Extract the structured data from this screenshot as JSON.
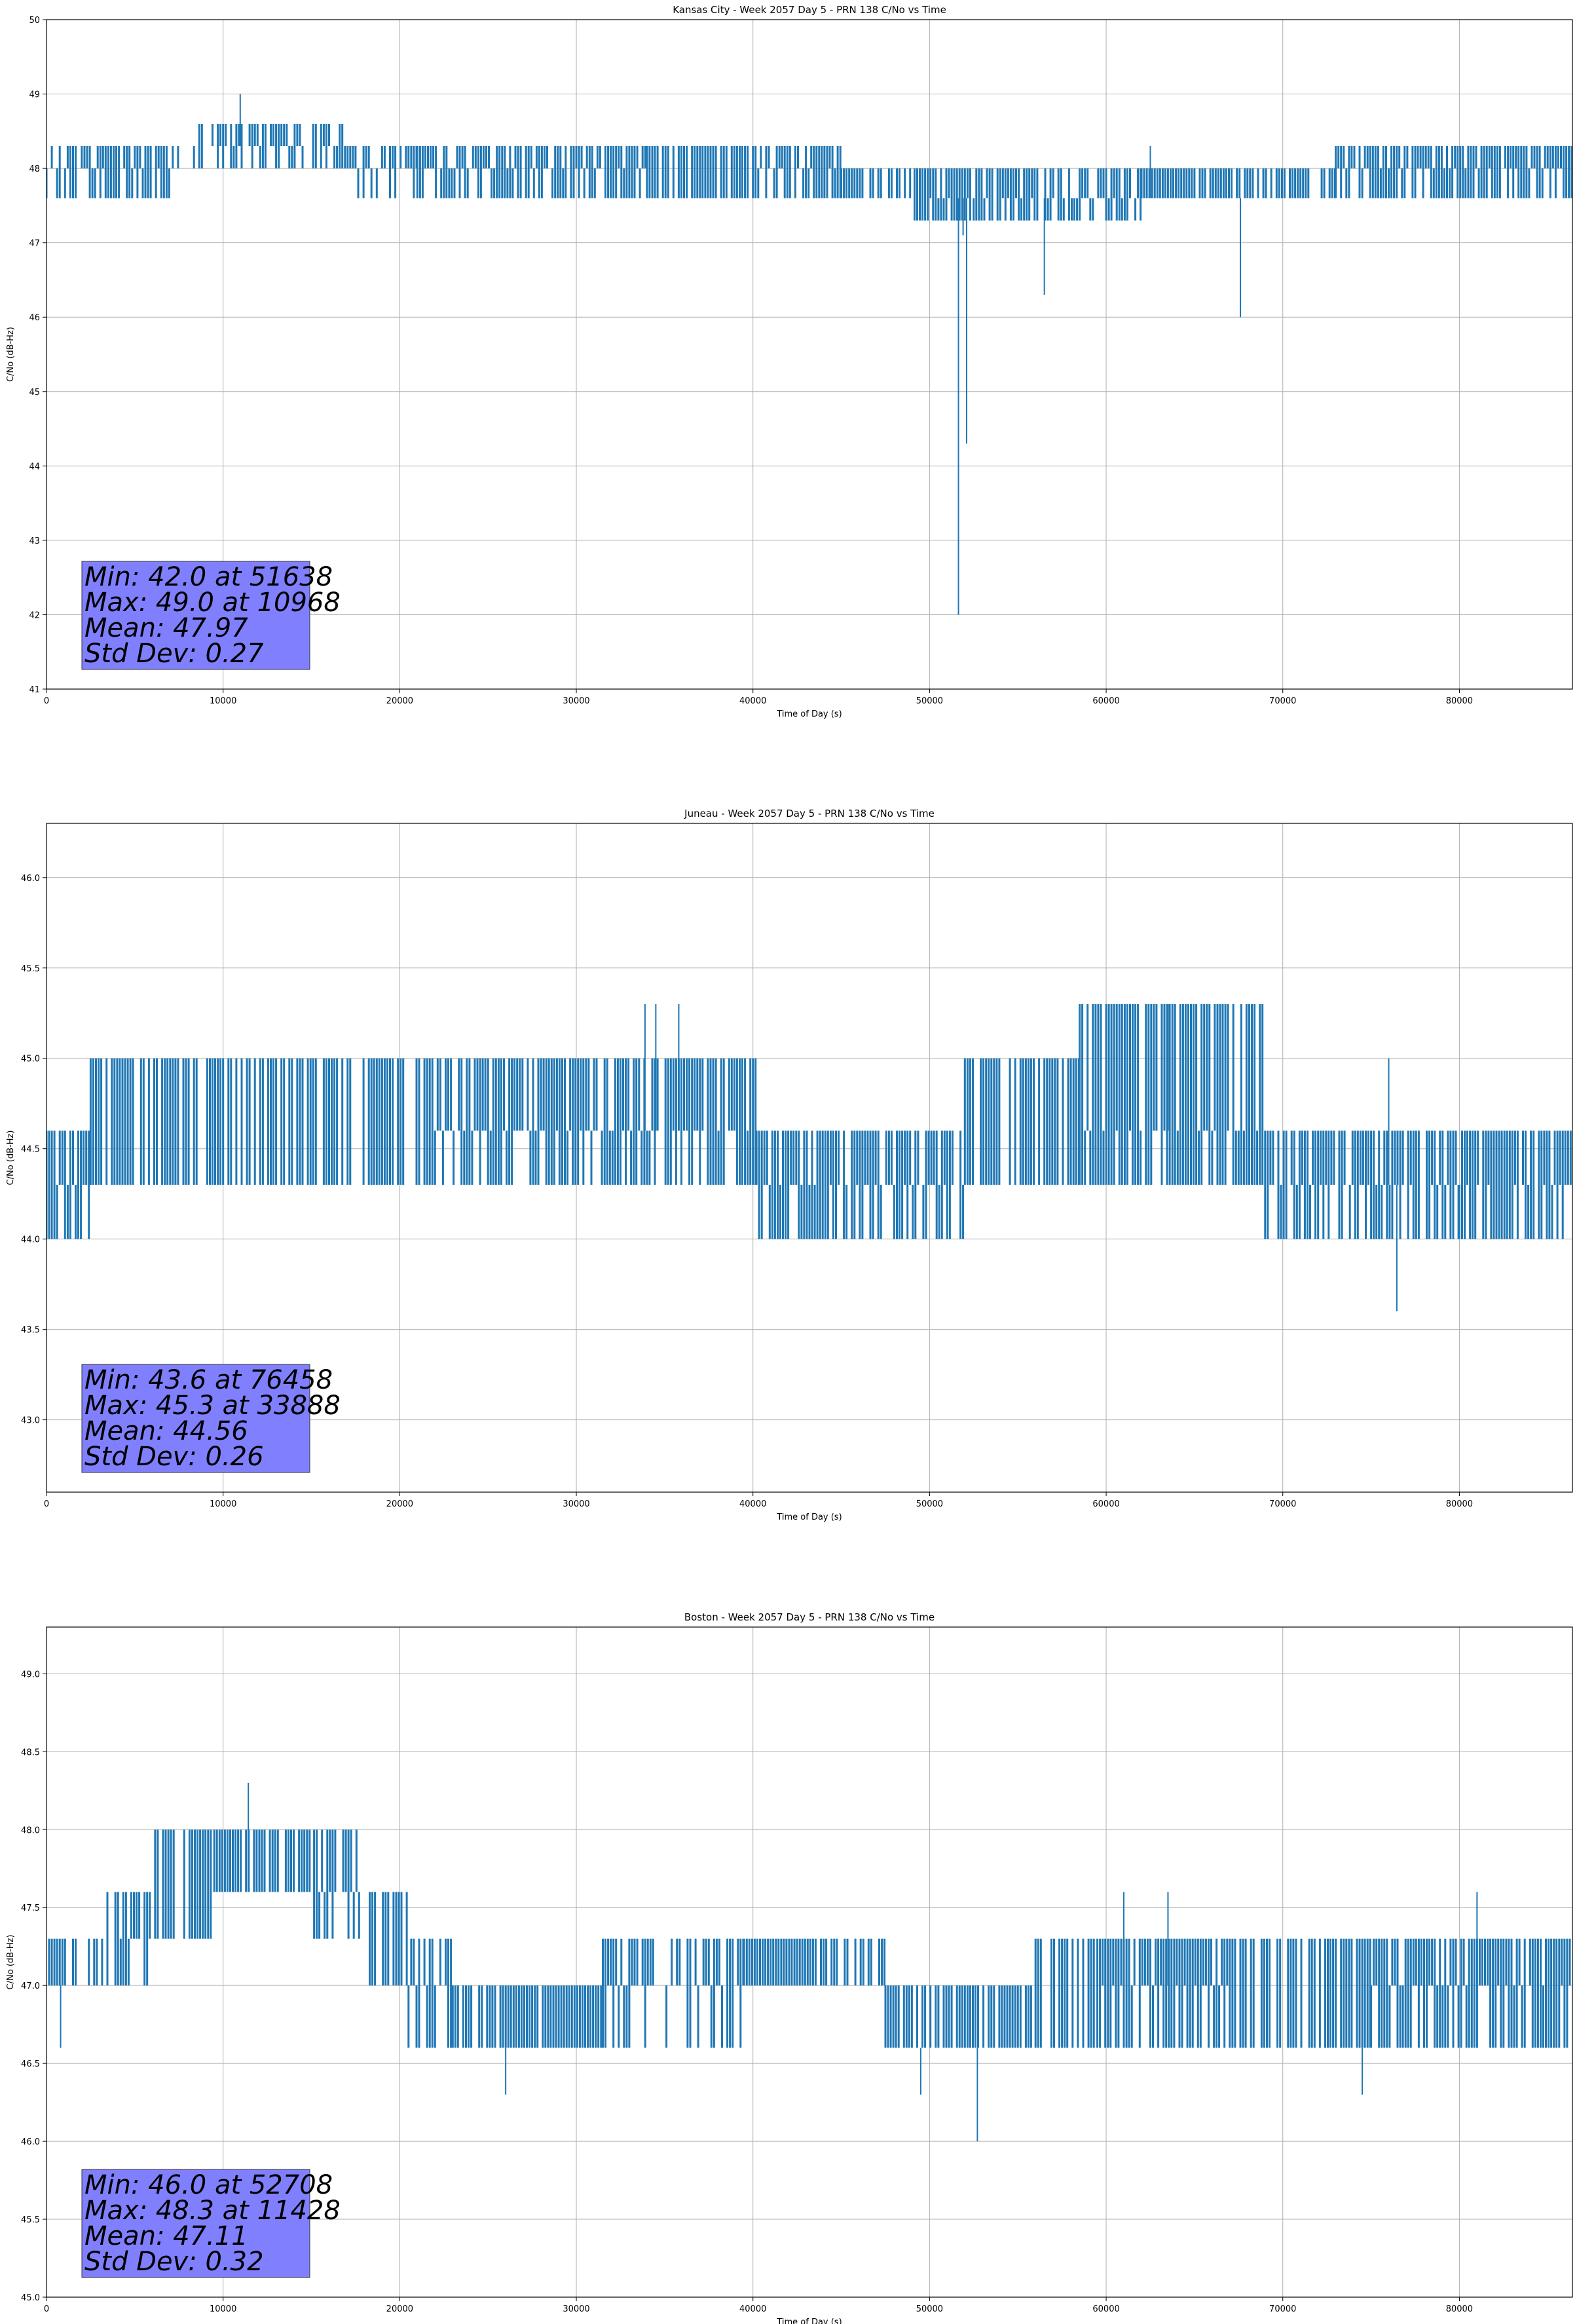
{
  "figure": {
    "series_color": "#1f77b4",
    "stats_box_color": "#8080ff"
  },
  "chart_data": [
    {
      "type": "line",
      "title": "Kansas City - Week 2057 Day 5 - PRN 138 C/No vs Time",
      "xlabel": "Time of Day (s)",
      "ylabel": "C/No (dB-Hz)",
      "xlim": [
        0,
        86400
      ],
      "ylim": [
        41,
        50
      ],
      "xticks": [
        0,
        10000,
        20000,
        30000,
        40000,
        50000,
        60000,
        70000,
        80000
      ],
      "yticks": [
        41,
        42,
        43,
        44,
        45,
        46,
        47,
        48,
        49,
        50
      ],
      "ytick_labels": [
        "41",
        "42",
        "43",
        "44",
        "45",
        "46",
        "47",
        "48",
        "49",
        "50"
      ],
      "grid": true,
      "segments": [
        {
          "x": [
            0,
            2000
          ],
          "base": 48.0,
          "high": 48.3,
          "low": 47.6,
          "density": 0.6
        },
        {
          "x": [
            2000,
            7000
          ],
          "base": 48.0,
          "high": 48.3,
          "low": 47.6,
          "density": 0.8
        },
        {
          "x": [
            7000,
            8500
          ],
          "base": 48.0,
          "high": 48.3,
          "low": 48.0,
          "density": 0.4
        },
        {
          "x": [
            8500,
            10000
          ],
          "base": 48.3,
          "high": 48.6,
          "low": 48.0,
          "density": 0.4
        },
        {
          "x": [
            10000,
            17500
          ],
          "base": 48.3,
          "high": 48.6,
          "low": 48.0,
          "density": 0.8
        },
        {
          "x": [
            17500,
            21000
          ],
          "base": 48.0,
          "high": 48.3,
          "low": 47.6,
          "density": 0.5
        },
        {
          "x": [
            21000,
            34000
          ],
          "base": 48.0,
          "high": 48.3,
          "low": 47.6,
          "density": 0.9
        },
        {
          "x": [
            34000,
            40000
          ],
          "base": 47.6,
          "high": 48.3,
          "low": 47.6,
          "density": 0.95
        },
        {
          "x": [
            40000,
            45000
          ],
          "base": 48.0,
          "high": 48.3,
          "low": 47.6,
          "density": 0.9
        },
        {
          "x": [
            45000,
            49000
          ],
          "base": 47.6,
          "high": 48.0,
          "low": 47.6,
          "density": 0.8
        },
        {
          "x": [
            49000,
            52500
          ],
          "base": 47.6,
          "high": 48.0,
          "low": 47.3,
          "density": 0.95
        },
        {
          "x": [
            52500,
            62000
          ],
          "base": 47.6,
          "high": 48.0,
          "low": 47.3,
          "density": 0.9
        },
        {
          "x": [
            62000,
            73000
          ],
          "base": 47.6,
          "high": 48.0,
          "low": 47.6,
          "density": 0.95
        },
        {
          "x": [
            73000,
            86400
          ],
          "base": 48.0,
          "high": 48.3,
          "low": 47.6,
          "density": 0.9
        }
      ],
      "spikes": [
        {
          "x": 10968,
          "y": 49.0
        },
        {
          "x": 51638,
          "y": 42.0
        },
        {
          "x": 51900,
          "y": 47.1
        },
        {
          "x": 52100,
          "y": 44.3
        },
        {
          "x": 56500,
          "y": 46.3
        },
        {
          "x": 62500,
          "y": 48.3
        },
        {
          "x": 67600,
          "y": 46.0
        }
      ],
      "stats": [
        "Min: 42.0 at 51638",
        "Max: 49.0 at 10968",
        "Mean: 47.97",
        "Std Dev: 0.27"
      ]
    },
    {
      "type": "line",
      "title": "Juneau - Week 2057 Day 5 - PRN 138 C/No vs Time",
      "xlabel": "Time of Day (s)",
      "ylabel": "C/No (dB-Hz)",
      "xlim": [
        0,
        86400
      ],
      "ylim": [
        42.6,
        46.3
      ],
      "xticks": [
        0,
        10000,
        20000,
        30000,
        40000,
        50000,
        60000,
        70000,
        80000
      ],
      "yticks": [
        43.0,
        43.5,
        44.0,
        44.5,
        45.0,
        45.5,
        46.0
      ],
      "ytick_labels": [
        "43.0",
        "43.5",
        "44.0",
        "44.5",
        "45.0",
        "45.5",
        "46.0"
      ],
      "grid": true,
      "segments": [
        {
          "x": [
            0,
            2500
          ],
          "base": 44.3,
          "high": 44.6,
          "low": 44.0,
          "density": 0.8
        },
        {
          "x": [
            2500,
            22000
          ],
          "base": 44.3,
          "high": 45.0,
          "low": 44.3,
          "density": 0.8
        },
        {
          "x": [
            22000,
            40200
          ],
          "base": 44.6,
          "high": 45.0,
          "low": 44.3,
          "density": 0.9
        },
        {
          "x": [
            40200,
            45000
          ],
          "base": 44.3,
          "high": 44.6,
          "low": 44.0,
          "density": 0.9
        },
        {
          "x": [
            45000,
            52000
          ],
          "base": 44.3,
          "high": 44.6,
          "low": 44.0,
          "density": 0.8
        },
        {
          "x": [
            52000,
            58500
          ],
          "base": 44.3,
          "high": 45.0,
          "low": 44.3,
          "density": 0.8
        },
        {
          "x": [
            58500,
            69000
          ],
          "base": 44.6,
          "high": 45.3,
          "low": 44.3,
          "density": 0.9
        },
        {
          "x": [
            69000,
            80000
          ],
          "base": 44.3,
          "high": 44.6,
          "low": 44.0,
          "density": 0.85
        },
        {
          "x": [
            80000,
            86400
          ],
          "base": 44.3,
          "high": 44.6,
          "low": 44.0,
          "density": 0.95
        }
      ],
      "spikes": [
        {
          "x": 33888,
          "y": 45.3
        },
        {
          "x": 34500,
          "y": 45.3
        },
        {
          "x": 35800,
          "y": 45.3
        },
        {
          "x": 60000,
          "y": 45.3
        },
        {
          "x": 63500,
          "y": 45.3
        },
        {
          "x": 76000,
          "y": 45.0
        },
        {
          "x": 76458,
          "y": 43.6
        }
      ],
      "stats": [
        "Min: 43.6 at 76458",
        "Max: 45.3 at 33888",
        "Mean: 44.56",
        "Std Dev: 0.26"
      ]
    },
    {
      "type": "line",
      "title": "Boston - Week 2057 Day 5 - PRN 138 C/No vs Time",
      "xlabel": "Time of Day (s)",
      "ylabel": "C/No (dB-Hz)",
      "xlim": [
        0,
        86400
      ],
      "ylim": [
        45.0,
        49.3
      ],
      "xticks": [
        0,
        10000,
        20000,
        30000,
        40000,
        50000,
        60000,
        70000,
        80000
      ],
      "yticks": [
        45.0,
        45.5,
        46.0,
        46.5,
        47.0,
        47.5,
        48.0,
        48.5,
        49.0
      ],
      "ytick_labels": [
        "45.0",
        "45.5",
        "46.0",
        "46.5",
        "47.0",
        "47.5",
        "48.0",
        "48.5",
        "49.0"
      ],
      "grid": true,
      "segments": [
        {
          "x": [
            0,
            3000
          ],
          "base": 47.0,
          "high": 47.3,
          "low": 47.0,
          "density": 0.9
        },
        {
          "x": [
            3000,
            6000
          ],
          "base": 47.3,
          "high": 47.6,
          "low": 47.0,
          "density": 0.7
        },
        {
          "x": [
            6000,
            9500
          ],
          "base": 47.3,
          "high": 48.0,
          "low": 47.3,
          "density": 0.8
        },
        {
          "x": [
            9500,
            15000
          ],
          "base": 47.6,
          "high": 48.0,
          "low": 47.6,
          "density": 0.95
        },
        {
          "x": [
            15000,
            18000
          ],
          "base": 47.6,
          "high": 48.0,
          "low": 47.3,
          "density": 0.6
        },
        {
          "x": [
            18000,
            20500
          ],
          "base": 47.0,
          "high": 47.6,
          "low": 47.0,
          "density": 0.7
        },
        {
          "x": [
            20500,
            23000
          ],
          "base": 47.0,
          "high": 47.3,
          "low": 46.6,
          "density": 0.6
        },
        {
          "x": [
            23000,
            31500
          ],
          "base": 46.6,
          "high": 47.0,
          "low": 46.6,
          "density": 0.95
        },
        {
          "x": [
            31500,
            39500
          ],
          "base": 47.0,
          "high": 47.3,
          "low": 46.6,
          "density": 0.6
        },
        {
          "x": [
            39500,
            47500
          ],
          "base": 47.0,
          "high": 47.3,
          "low": 47.0,
          "density": 0.95
        },
        {
          "x": [
            47500,
            56000
          ],
          "base": 46.6,
          "high": 47.0,
          "low": 46.6,
          "density": 0.9
        },
        {
          "x": [
            56000,
            59500
          ],
          "base": 46.6,
          "high": 47.3,
          "low": 46.6,
          "density": 0.6
        },
        {
          "x": [
            59500,
            67000
          ],
          "base": 47.0,
          "high": 47.3,
          "low": 46.6,
          "density": 0.9
        },
        {
          "x": [
            67000,
            75000
          ],
          "base": 46.6,
          "high": 47.3,
          "low": 46.6,
          "density": 0.8
        },
        {
          "x": [
            75000,
            86400
          ],
          "base": 47.0,
          "high": 47.3,
          "low": 46.6,
          "density": 0.9
        }
      ],
      "spikes": [
        {
          "x": 800,
          "y": 46.6
        },
        {
          "x": 11428,
          "y": 48.3
        },
        {
          "x": 26000,
          "y": 46.3
        },
        {
          "x": 49500,
          "y": 46.3
        },
        {
          "x": 52708,
          "y": 46.0
        },
        {
          "x": 61000,
          "y": 47.6
        },
        {
          "x": 63500,
          "y": 47.6
        },
        {
          "x": 74500,
          "y": 46.3
        },
        {
          "x": 81000,
          "y": 47.6
        }
      ],
      "stats": [
        "Min: 46.0 at 52708",
        "Max: 48.3 at 11428",
        "Mean: 47.11",
        "Std Dev: 0.32"
      ]
    }
  ]
}
